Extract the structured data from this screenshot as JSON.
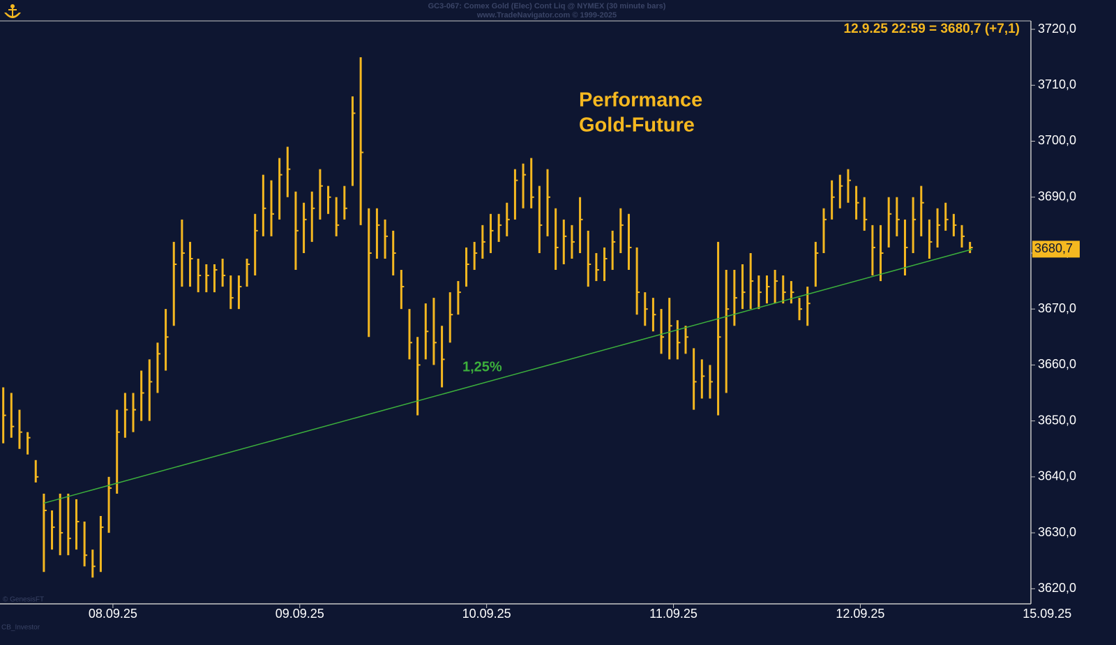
{
  "chart_data": {
    "type": "ohlc",
    "header": [
      "GC3-067: Comex Gold (Elec) Cont Liq @ NYMEX (30 minute bars)",
      "www.TradeNavigator.com © 1999-2025"
    ],
    "title_lines": [
      "Performance",
      "Gold-Future"
    ],
    "last_quote": "12.9.25 22:59 = 3680,7 (+7,1)",
    "last_price": {
      "value": 3680.7,
      "label": "3680,7"
    },
    "footer": [
      "© GenesisFT",
      "CB_Investor"
    ],
    "color": "#f5b820",
    "high": [
      3656,
      3655,
      3652,
      3648,
      3643,
      3637,
      3634,
      3637,
      3637,
      3636,
      3632,
      3627,
      3633,
      3640,
      3652,
      3655,
      3655,
      3659,
      3661,
      3664,
      3670,
      3682,
      3686,
      3682,
      3679,
      3678,
      3678,
      3679,
      3676,
      3676,
      3679,
      3687,
      3694,
      3693,
      3697,
      3699,
      3691,
      3689,
      3691,
      3695,
      3692,
      3690,
      3692,
      3708,
      3715,
      3688,
      3688,
      3686,
      3684,
      3677,
      3670,
      3665,
      3671,
      3672,
      3667,
      3673,
      3675,
      3681,
      3682,
      3685,
      3687,
      3687,
      3689,
      3695,
      3696,
      3697,
      3692,
      3695,
      3688,
      3686,
      3685,
      3690,
      3684,
      3680,
      3681,
      3684,
      3688,
      3687,
      3681,
      3673,
      3672,
      3670,
      3672,
      3668,
      3667,
      3663,
      3661,
      3660,
      3682,
      3677,
      3677,
      3678,
      3680,
      3676,
      3676,
      3677,
      3676,
      3675,
      3672,
      3674,
      3682,
      3688,
      3693,
      3694,
      3695,
      3692,
      3690,
      3685,
      3685,
      3690,
      3690,
      3686,
      3690,
      3692,
      3686,
      3688,
      3689,
      3687,
      3685,
      3682
    ],
    "low": [
      3646,
      3647,
      3645,
      3644,
      3639,
      3623,
      3627,
      3626,
      3626,
      3627,
      3624,
      3622,
      3623,
      3630,
      3637,
      3647,
      3648,
      3650,
      3650,
      3655,
      3659,
      3667,
      3674,
      3674,
      3673,
      3673,
      3673,
      3674,
      3670,
      3670,
      3674,
      3676,
      3683,
      3683,
      3686,
      3690,
      3677,
      3680,
      3682,
      3686,
      3687,
      3683,
      3686,
      3692,
      3685,
      3665,
      3679,
      3679,
      3676,
      3670,
      3661,
      3651,
      3661,
      3660,
      3656,
      3664,
      3669,
      3674,
      3677,
      3679,
      3680,
      3682,
      3683,
      3686,
      3688,
      3688,
      3680,
      3683,
      3677,
      3678,
      3679,
      3680,
      3674,
      3675,
      3675,
      3677,
      3680,
      3677,
      3669,
      3667,
      3666,
      3662,
      3661,
      3661,
      3662,
      3652,
      3654,
      3654,
      3651,
      3655,
      3667,
      3670,
      3670,
      3670,
      3671,
      3671,
      3671,
      3671,
      3668,
      3667,
      3674,
      3680,
      3686,
      3688,
      3689,
      3686,
      3684,
      3676,
      3675,
      3681,
      3683,
      3676,
      3680,
      3683,
      3679,
      3681,
      3684,
      3683,
      3681,
      3680
    ],
    "close": [
      3651,
      3649,
      3648,
      3647,
      3640,
      3634,
      3631,
      3630,
      3629,
      3632,
      3626,
      3624,
      3631,
      3638,
      3648,
      3652,
      3652,
      3655,
      3657,
      3662,
      3665,
      3678,
      3680,
      3679,
      3676,
      3676,
      3677,
      3676,
      3672,
      3674,
      3678,
      3684,
      3688,
      3687,
      3694,
      3695,
      3684,
      3686,
      3688,
      3692,
      3690,
      3685,
      3688,
      3705,
      3698,
      3680,
      3685,
      3683,
      3680,
      3674,
      3664,
      3660,
      3666,
      3664,
      3661,
      3669,
      3673,
      3678,
      3680,
      3682,
      3684,
      3685,
      3686,
      3693,
      3694,
      3690,
      3685,
      3690,
      3681,
      3683,
      3682,
      3686,
      3678,
      3677,
      3679,
      3682,
      3685,
      3681,
      3673,
      3670,
      3669,
      3665,
      3667,
      3664,
      3665,
      3657,
      3658,
      3657,
      3665,
      3670,
      3672,
      3673,
      3675,
      3673,
      3674,
      3675,
      3673,
      3673,
      3670,
      3671,
      3680,
      3686,
      3690,
      3692,
      3693,
      3689,
      3686,
      3681,
      3680,
      3687,
      3686,
      3681,
      3686,
      3689,
      3682,
      3685,
      3686,
      3685,
      3683,
      3681
    ],
    "trend_line": {
      "label": "1,25%",
      "color": "#3cb03c",
      "x": [
        5,
        119.3
      ],
      "values": [
        3635.3,
        3680.7
      ]
    },
    "xlim": [
      -0.4,
      126.5
    ],
    "xticks": [
      {
        "value": 13.5,
        "label": "08.09.25"
      },
      {
        "value": 36.5,
        "label": "09.09.25"
      },
      {
        "value": 59.5,
        "label": "10.09.25"
      },
      {
        "value": 82.5,
        "label": "11.09.25"
      },
      {
        "value": 105.5,
        "label": "12.09.25"
      },
      {
        "value": 128.5,
        "label": "15.09.25"
      }
    ],
    "ylim": [
      3617.3,
      3721.5
    ],
    "yticks": [
      {
        "value": 3620,
        "label": "3620,0"
      },
      {
        "value": 3630,
        "label": "3630,0"
      },
      {
        "value": 3640,
        "label": "3640,0"
      },
      {
        "value": 3650,
        "label": "3650,0"
      },
      {
        "value": 3660,
        "label": "3660,0"
      },
      {
        "value": 3670,
        "label": "3670,0"
      },
      {
        "value": 3680,
        "label": "3680,0"
      },
      {
        "value": 3690,
        "label": "3690,0"
      },
      {
        "value": 3700,
        "label": "3700,0"
      },
      {
        "value": 3710,
        "label": "3710,0"
      },
      {
        "value": 3720,
        "label": "3720,0"
      }
    ]
  }
}
